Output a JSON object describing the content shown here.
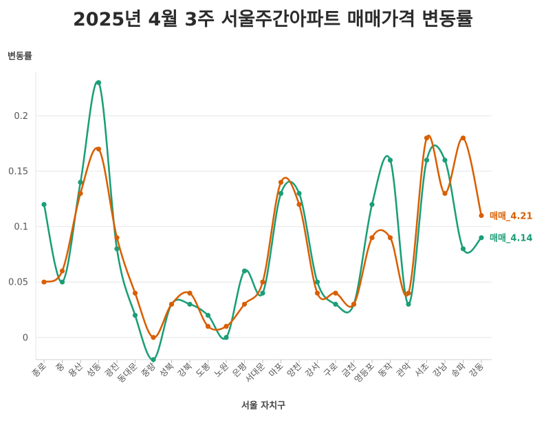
{
  "chart_data": {
    "type": "line",
    "title": "2025년 4월 3주 서울주간아파트 매매가격 변동률",
    "xlabel": "서울 자치구",
    "ylabel": "변동률",
    "ylim": [
      -0.02,
      0.24
    ],
    "yticks": [
      0,
      0.05,
      0.1,
      0.15,
      0.2
    ],
    "ytick_labels": [
      "0",
      "0.05",
      "0.1",
      "0.15",
      "0.2"
    ],
    "grid": true,
    "legend": "end-of-line labels",
    "categories": [
      "종로",
      "중",
      "용산",
      "성동",
      "광진",
      "동대문",
      "중랑",
      "성북",
      "강북",
      "도봉",
      "노원",
      "은평",
      "서대문",
      "마포",
      "양천",
      "강서",
      "구로",
      "금천",
      "영등포",
      "동작",
      "관악",
      "서초",
      "강남",
      "송파",
      "강동"
    ],
    "series": [
      {
        "name": "매매_4.14",
        "color": "#1b9e77",
        "values": [
          0.12,
          0.05,
          0.14,
          0.23,
          0.08,
          0.02,
          -0.02,
          0.03,
          0.03,
          0.02,
          0.0,
          0.06,
          0.04,
          0.13,
          0.13,
          0.05,
          0.03,
          0.03,
          0.12,
          0.16,
          0.03,
          0.16,
          0.16,
          0.08,
          0.09
        ]
      },
      {
        "name": "매매_4.21",
        "color": "#d95f02",
        "values": [
          0.05,
          0.06,
          0.13,
          0.17,
          0.09,
          0.04,
          0.0,
          0.03,
          0.04,
          0.01,
          0.01,
          0.03,
          0.05,
          0.14,
          0.12,
          0.04,
          0.04,
          0.03,
          0.09,
          0.09,
          0.04,
          0.18,
          0.13,
          0.18,
          0.11
        ]
      }
    ]
  }
}
